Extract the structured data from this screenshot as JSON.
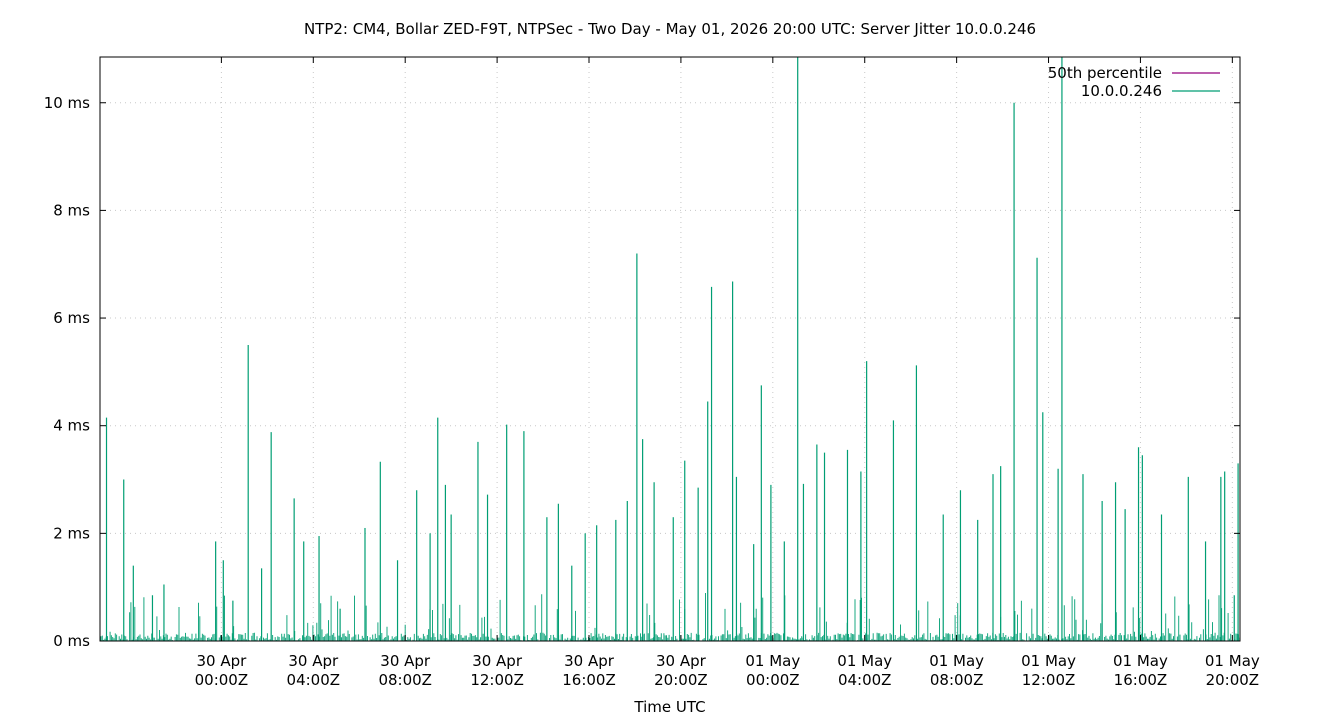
{
  "chart_data": {
    "type": "line",
    "title": "NTP2: CM4, Bollar ZED-F9T, NTPSec - Two Day - May 01, 2026 20:00 UTC: Server Jitter 10.0.0.246",
    "xlabel": "Time UTC",
    "ylabel": "",
    "x_range": [
      "2026-04-29T18:43Z",
      "2026-05-01T20:20Z"
    ],
    "ylim": [
      0,
      10.85
    ],
    "y_ticks": [
      {
        "value": 0,
        "label": "0 ms"
      },
      {
        "value": 2,
        "label": "2 ms"
      },
      {
        "value": 4,
        "label": "4 ms"
      },
      {
        "value": 6,
        "label": "6 ms"
      },
      {
        "value": 8,
        "label": "8 ms"
      },
      {
        "value": 10,
        "label": "10 ms"
      }
    ],
    "x_ticks": [
      {
        "value": "2026-04-30T00:00Z",
        "line1": "30 Apr",
        "line2": "00:00Z"
      },
      {
        "value": "2026-04-30T04:00Z",
        "line1": "30 Apr",
        "line2": "04:00Z"
      },
      {
        "value": "2026-04-30T08:00Z",
        "line1": "30 Apr",
        "line2": "08:00Z"
      },
      {
        "value": "2026-04-30T12:00Z",
        "line1": "30 Apr",
        "line2": "12:00Z"
      },
      {
        "value": "2026-04-30T16:00Z",
        "line1": "30 Apr",
        "line2": "16:00Z"
      },
      {
        "value": "2026-04-30T20:00Z",
        "line1": "30 Apr",
        "line2": "20:00Z"
      },
      {
        "value": "2026-05-01T00:00Z",
        "line1": "01 May",
        "line2": "00:00Z"
      },
      {
        "value": "2026-05-01T04:00Z",
        "line1": "01 May",
        "line2": "04:00Z"
      },
      {
        "value": "2026-05-01T08:00Z",
        "line1": "01 May",
        "line2": "08:00Z"
      },
      {
        "value": "2026-05-01T12:00Z",
        "line1": "01 May",
        "line2": "12:00Z"
      },
      {
        "value": "2026-05-01T16:00Z",
        "line1": "01 May",
        "line2": "16:00Z"
      },
      {
        "value": "2026-05-01T20:00Z",
        "line1": "01 May",
        "line2": "20:00Z"
      }
    ],
    "grid": true,
    "legend_position": "top-right",
    "series": [
      {
        "name": "50th percentile",
        "color": "#94007d",
        "values": []
      },
      {
        "name": "10.0.0.246",
        "color": "#009e73",
        "style": "spikes",
        "points": [
          {
            "t": "2026-04-29T19:00Z",
            "y": 4.15
          },
          {
            "t": "2026-04-29T19:45Z",
            "y": 3.0
          },
          {
            "t": "2026-04-29T20:10Z",
            "y": 1.4
          },
          {
            "t": "2026-04-29T21:00Z",
            "y": 0.85
          },
          {
            "t": "2026-04-29T21:30Z",
            "y": 1.05
          },
          {
            "t": "2026-04-29T23:45Z",
            "y": 1.85
          },
          {
            "t": "2026-04-30T00:05Z",
            "y": 1.5
          },
          {
            "t": "2026-04-30T00:30Z",
            "y": 0.75
          },
          {
            "t": "2026-04-30T01:10Z",
            "y": 5.5
          },
          {
            "t": "2026-04-30T01:45Z",
            "y": 1.35
          },
          {
            "t": "2026-04-30T02:10Z",
            "y": 3.88
          },
          {
            "t": "2026-04-30T03:10Z",
            "y": 2.65
          },
          {
            "t": "2026-04-30T03:35Z",
            "y": 1.85
          },
          {
            "t": "2026-04-30T04:15Z",
            "y": 1.95
          },
          {
            "t": "2026-04-30T05:10Z",
            "y": 0.6
          },
          {
            "t": "2026-04-30T06:15Z",
            "y": 2.1
          },
          {
            "t": "2026-04-30T06:55Z",
            "y": 3.33
          },
          {
            "t": "2026-04-30T07:40Z",
            "y": 1.5
          },
          {
            "t": "2026-04-30T08:30Z",
            "y": 2.8
          },
          {
            "t": "2026-04-30T09:05Z",
            "y": 2.0
          },
          {
            "t": "2026-04-30T09:25Z",
            "y": 4.15
          },
          {
            "t": "2026-04-30T09:45Z",
            "y": 2.9
          },
          {
            "t": "2026-04-30T10:00Z",
            "y": 2.35
          },
          {
            "t": "2026-04-30T11:10Z",
            "y": 3.7
          },
          {
            "t": "2026-04-30T11:35Z",
            "y": 2.72
          },
          {
            "t": "2026-04-30T12:25Z",
            "y": 4.02
          },
          {
            "t": "2026-04-30T13:10Z",
            "y": 3.9
          },
          {
            "t": "2026-04-30T14:10Z",
            "y": 2.3
          },
          {
            "t": "2026-04-30T14:40Z",
            "y": 2.55
          },
          {
            "t": "2026-04-30T15:15Z",
            "y": 1.4
          },
          {
            "t": "2026-04-30T15:50Z",
            "y": 2.0
          },
          {
            "t": "2026-04-30T16:20Z",
            "y": 2.15
          },
          {
            "t": "2026-04-30T17:10Z",
            "y": 2.25
          },
          {
            "t": "2026-04-30T17:40Z",
            "y": 2.6
          },
          {
            "t": "2026-04-30T18:05Z",
            "y": 7.2
          },
          {
            "t": "2026-04-30T18:20Z",
            "y": 3.75
          },
          {
            "t": "2026-04-30T18:50Z",
            "y": 2.95
          },
          {
            "t": "2026-04-30T19:40Z",
            "y": 2.3
          },
          {
            "t": "2026-04-30T20:10Z",
            "y": 3.35
          },
          {
            "t": "2026-04-30T20:45Z",
            "y": 2.85
          },
          {
            "t": "2026-04-30T21:10Z",
            "y": 4.45
          },
          {
            "t": "2026-04-30T21:20Z",
            "y": 6.58
          },
          {
            "t": "2026-04-30T22:15Z",
            "y": 6.68
          },
          {
            "t": "2026-04-30T22:25Z",
            "y": 3.05
          },
          {
            "t": "2026-04-30T23:10Z",
            "y": 1.8
          },
          {
            "t": "2026-04-30T23:30Z",
            "y": 4.75
          },
          {
            "t": "2026-04-30T23:55Z",
            "y": 2.9
          },
          {
            "t": "2026-05-01T00:30Z",
            "y": 1.85
          },
          {
            "t": "2026-05-01T01:05Z",
            "y": 10.85
          },
          {
            "t": "2026-05-01T01:20Z",
            "y": 2.92
          },
          {
            "t": "2026-05-01T01:55Z",
            "y": 3.65
          },
          {
            "t": "2026-05-01T02:15Z",
            "y": 3.5
          },
          {
            "t": "2026-05-01T03:15Z",
            "y": 3.55
          },
          {
            "t": "2026-05-01T03:50Z",
            "y": 3.15
          },
          {
            "t": "2026-05-01T04:05Z",
            "y": 5.2
          },
          {
            "t": "2026-05-01T05:15Z",
            "y": 4.1
          },
          {
            "t": "2026-05-01T06:15Z",
            "y": 5.12
          },
          {
            "t": "2026-05-01T07:25Z",
            "y": 2.35
          },
          {
            "t": "2026-05-01T08:10Z",
            "y": 2.8
          },
          {
            "t": "2026-05-01T08:55Z",
            "y": 2.25
          },
          {
            "t": "2026-05-01T09:35Z",
            "y": 3.1
          },
          {
            "t": "2026-05-01T09:55Z",
            "y": 3.25
          },
          {
            "t": "2026-05-01T10:30Z",
            "y": 10.0
          },
          {
            "t": "2026-05-01T11:30Z",
            "y": 7.12
          },
          {
            "t": "2026-05-01T11:45Z",
            "y": 4.25
          },
          {
            "t": "2026-05-01T12:25Z",
            "y": 3.2
          },
          {
            "t": "2026-05-01T12:35Z",
            "y": 10.85
          },
          {
            "t": "2026-05-01T13:30Z",
            "y": 3.1
          },
          {
            "t": "2026-05-01T14:20Z",
            "y": 2.6
          },
          {
            "t": "2026-05-01T14:55Z",
            "y": 2.95
          },
          {
            "t": "2026-05-01T15:20Z",
            "y": 2.45
          },
          {
            "t": "2026-05-01T15:55Z",
            "y": 3.6
          },
          {
            "t": "2026-05-01T16:05Z",
            "y": 3.45
          },
          {
            "t": "2026-05-01T16:55Z",
            "y": 2.35
          },
          {
            "t": "2026-05-01T18:05Z",
            "y": 3.05
          },
          {
            "t": "2026-05-01T18:50Z",
            "y": 1.85
          },
          {
            "t": "2026-05-01T19:30Z",
            "y": 3.05
          },
          {
            "t": "2026-05-01T19:40Z",
            "y": 3.15
          },
          {
            "t": "2026-05-01T20:05Z",
            "y": 0.85
          },
          {
            "t": "2026-05-01T20:15Z",
            "y": 3.3
          }
        ]
      }
    ]
  }
}
